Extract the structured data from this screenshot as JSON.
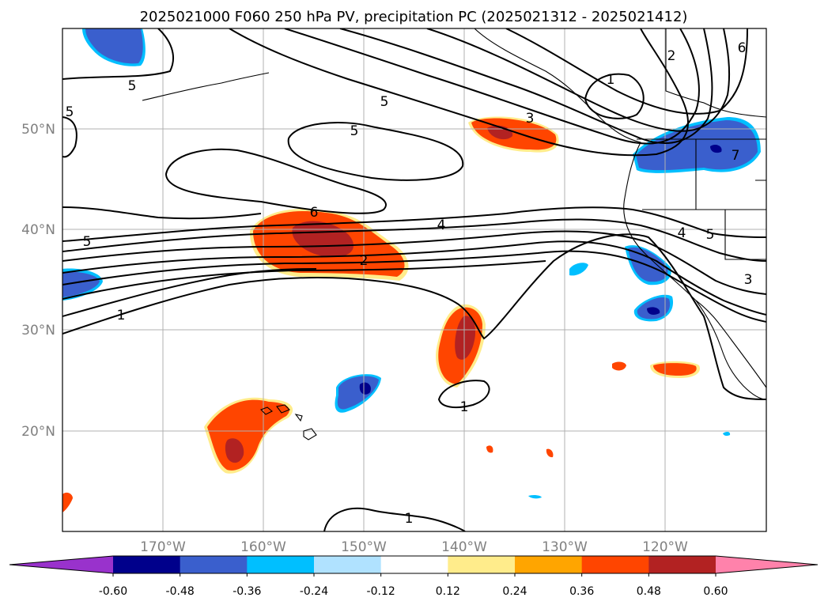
{
  "title": "2025021000 F060 250 hPa PV, precipitation PC (2025021312 - 2025021412)",
  "lat_labels": [
    "50°N",
    "40°N",
    "30°N",
    "20°N"
  ],
  "lon_labels": [
    "170°W",
    "160°W",
    "150°W",
    "140°W",
    "130°W",
    "120°W"
  ],
  "colorbar": {
    "tick_labels": [
      "-0.60",
      "-0.48",
      "-0.36",
      "-0.24",
      "-0.12",
      "0.12",
      "0.24",
      "0.36",
      "0.48",
      "0.60"
    ],
    "colors": [
      "#9932cc",
      "#00008b",
      "#3a5fcd",
      "#00bfff",
      "#b0e2ff",
      "#ffffff",
      "#ffec8b",
      "#ffa500",
      "#ff4500",
      "#b22222",
      "#ff82ab"
    ]
  },
  "contour_labels": [
    "5",
    "5",
    "5",
    "5",
    "5",
    "6",
    "4",
    "2",
    "1",
    "3",
    "1",
    "2",
    "6",
    "7",
    "4",
    "5",
    "3",
    "1",
    "1"
  ]
}
